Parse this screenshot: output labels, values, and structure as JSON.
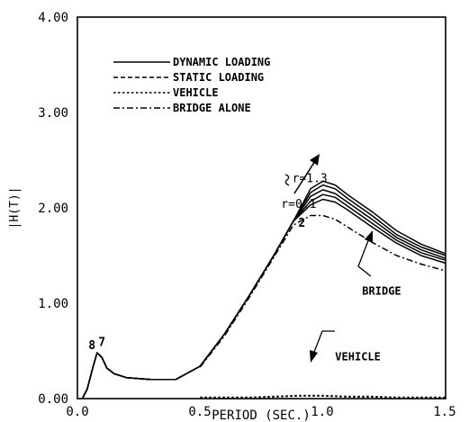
{
  "chart_data": {
    "type": "line",
    "xlabel": "PERIOD (SEC.)",
    "ylabel": "|H(T)|",
    "xlim": [
      0.0,
      1.5
    ],
    "ylim": [
      0.0,
      4.0
    ],
    "x_ticks": [
      0.0,
      0.5,
      1.0,
      1.5
    ],
    "x_tick_labels": [
      "0.0",
      "0.5",
      "1.0",
      "1.5"
    ],
    "y_ticks": [
      0.0,
      1.0,
      2.0,
      3.0,
      4.0
    ],
    "y_tick_labels": [
      "0.00",
      "1.00",
      "2.00",
      "3.00",
      "4.00"
    ],
    "grid": false,
    "legend_position": "top-left",
    "legend": [
      {
        "label": "DYNAMIC LOADING",
        "style": "solid"
      },
      {
        "label": "STATIC  LOADING",
        "style": "dashed"
      },
      {
        "label": "VEHICLE",
        "style": "dotted"
      },
      {
        "label": "BRIDGE ALONE",
        "style": "dashdot"
      }
    ],
    "series": [
      {
        "name": "DYNAMIC LOADING",
        "style": "solid",
        "x": [
          0.02,
          0.04,
          0.06,
          0.08,
          0.1,
          0.12,
          0.15,
          0.2,
          0.3,
          0.4,
          0.5,
          0.6,
          0.7,
          0.8,
          0.88,
          0.95,
          1.0,
          1.05,
          1.1,
          1.2,
          1.3,
          1.4,
          1.5
        ],
        "y": [
          0.0,
          0.1,
          0.3,
          0.48,
          0.43,
          0.32,
          0.26,
          0.22,
          0.2,
          0.2,
          0.34,
          0.68,
          1.08,
          1.5,
          1.86,
          2.2,
          2.28,
          2.24,
          2.14,
          1.96,
          1.76,
          1.62,
          1.52
        ]
      },
      {
        "name": "DYNAMIC LOADING",
        "style": "solid",
        "x": [
          0.02,
          0.04,
          0.06,
          0.08,
          0.1,
          0.12,
          0.15,
          0.2,
          0.3,
          0.4,
          0.5,
          0.6,
          0.7,
          0.8,
          0.88,
          0.95,
          1.0,
          1.05,
          1.1,
          1.2,
          1.3,
          1.4,
          1.5
        ],
        "y": [
          0.0,
          0.1,
          0.3,
          0.48,
          0.43,
          0.32,
          0.26,
          0.22,
          0.2,
          0.2,
          0.34,
          0.68,
          1.08,
          1.5,
          1.86,
          2.16,
          2.24,
          2.2,
          2.1,
          1.92,
          1.72,
          1.59,
          1.5
        ]
      },
      {
        "name": "DYNAMIC LOADING",
        "style": "solid",
        "x": [
          0.02,
          0.04,
          0.06,
          0.08,
          0.1,
          0.12,
          0.15,
          0.2,
          0.3,
          0.4,
          0.5,
          0.6,
          0.7,
          0.8,
          0.88,
          0.95,
          1.0,
          1.05,
          1.1,
          1.2,
          1.3,
          1.4,
          1.5
        ],
        "y": [
          0.0,
          0.1,
          0.3,
          0.48,
          0.43,
          0.32,
          0.26,
          0.22,
          0.2,
          0.2,
          0.34,
          0.68,
          1.08,
          1.5,
          1.86,
          2.12,
          2.19,
          2.15,
          2.06,
          1.88,
          1.69,
          1.56,
          1.47
        ]
      },
      {
        "name": "DYNAMIC LOADING",
        "style": "solid",
        "x": [
          0.02,
          0.04,
          0.06,
          0.08,
          0.1,
          0.12,
          0.15,
          0.2,
          0.3,
          0.4,
          0.5,
          0.6,
          0.7,
          0.8,
          0.88,
          0.95,
          1.0,
          1.05,
          1.1,
          1.2,
          1.3,
          1.4,
          1.5
        ],
        "y": [
          0.0,
          0.1,
          0.3,
          0.48,
          0.43,
          0.32,
          0.26,
          0.22,
          0.2,
          0.2,
          0.34,
          0.68,
          1.08,
          1.5,
          1.86,
          2.07,
          2.14,
          2.11,
          2.02,
          1.84,
          1.66,
          1.53,
          1.45
        ]
      },
      {
        "name": "DYNAMIC LOADING",
        "style": "solid",
        "x": [
          0.02,
          0.04,
          0.06,
          0.08,
          0.1,
          0.12,
          0.15,
          0.2,
          0.3,
          0.4,
          0.5,
          0.6,
          0.7,
          0.8,
          0.88,
          0.95,
          1.0,
          1.05,
          1.1,
          1.2,
          1.3,
          1.4,
          1.5
        ],
        "y": [
          0.0,
          0.1,
          0.3,
          0.48,
          0.43,
          0.32,
          0.26,
          0.22,
          0.2,
          0.2,
          0.34,
          0.68,
          1.08,
          1.5,
          1.86,
          2.03,
          2.09,
          2.06,
          1.98,
          1.8,
          1.63,
          1.5,
          1.42
        ]
      },
      {
        "name": "STATIC  LOADING",
        "style": "dashed",
        "x": [
          0.02,
          0.04,
          0.06,
          0.08,
          0.1,
          0.12,
          0.15,
          0.2,
          0.3,
          0.4,
          0.5,
          0.6,
          0.7,
          0.8,
          0.88
        ],
        "y": [
          0.0,
          0.1,
          0.3,
          0.48,
          0.43,
          0.32,
          0.26,
          0.22,
          0.2,
          0.2,
          0.34,
          0.68,
          1.08,
          1.5,
          1.86
        ]
      },
      {
        "name": "BRIDGE ALONE",
        "style": "dashdot",
        "x": [
          0.5,
          0.6,
          0.7,
          0.8,
          0.88,
          0.95,
          1.0,
          1.05,
          1.1,
          1.2,
          1.3,
          1.4,
          1.5
        ],
        "y": [
          0.33,
          0.66,
          1.06,
          1.48,
          1.82,
          1.92,
          1.92,
          1.88,
          1.8,
          1.64,
          1.5,
          1.41,
          1.34
        ]
      },
      {
        "name": "VEHICLE",
        "style": "dotted",
        "x": [
          0.5,
          0.6,
          0.7,
          0.8,
          0.9,
          1.0,
          1.1,
          1.2,
          1.3,
          1.4,
          1.5
        ],
        "y": [
          0.01,
          0.01,
          0.01,
          0.02,
          0.03,
          0.03,
          0.02,
          0.02,
          0.01,
          0.01,
          0.01
        ]
      }
    ],
    "annotations": [
      {
        "text": "r=1.3",
        "x": 0.875,
        "y": 2.27
      },
      {
        "text": "r=0.1",
        "x": 0.83,
        "y": 2.0
      },
      {
        "text": "2",
        "x": 0.9,
        "y": 1.8
      },
      {
        "text": "8",
        "x": 0.045,
        "y": 0.52
      },
      {
        "text": "7",
        "x": 0.085,
        "y": 0.55
      },
      {
        "text": "BRIDGE",
        "x": 1.16,
        "y": 1.09
      },
      {
        "text": "VEHICLE",
        "x": 1.05,
        "y": 0.4
      }
    ]
  }
}
